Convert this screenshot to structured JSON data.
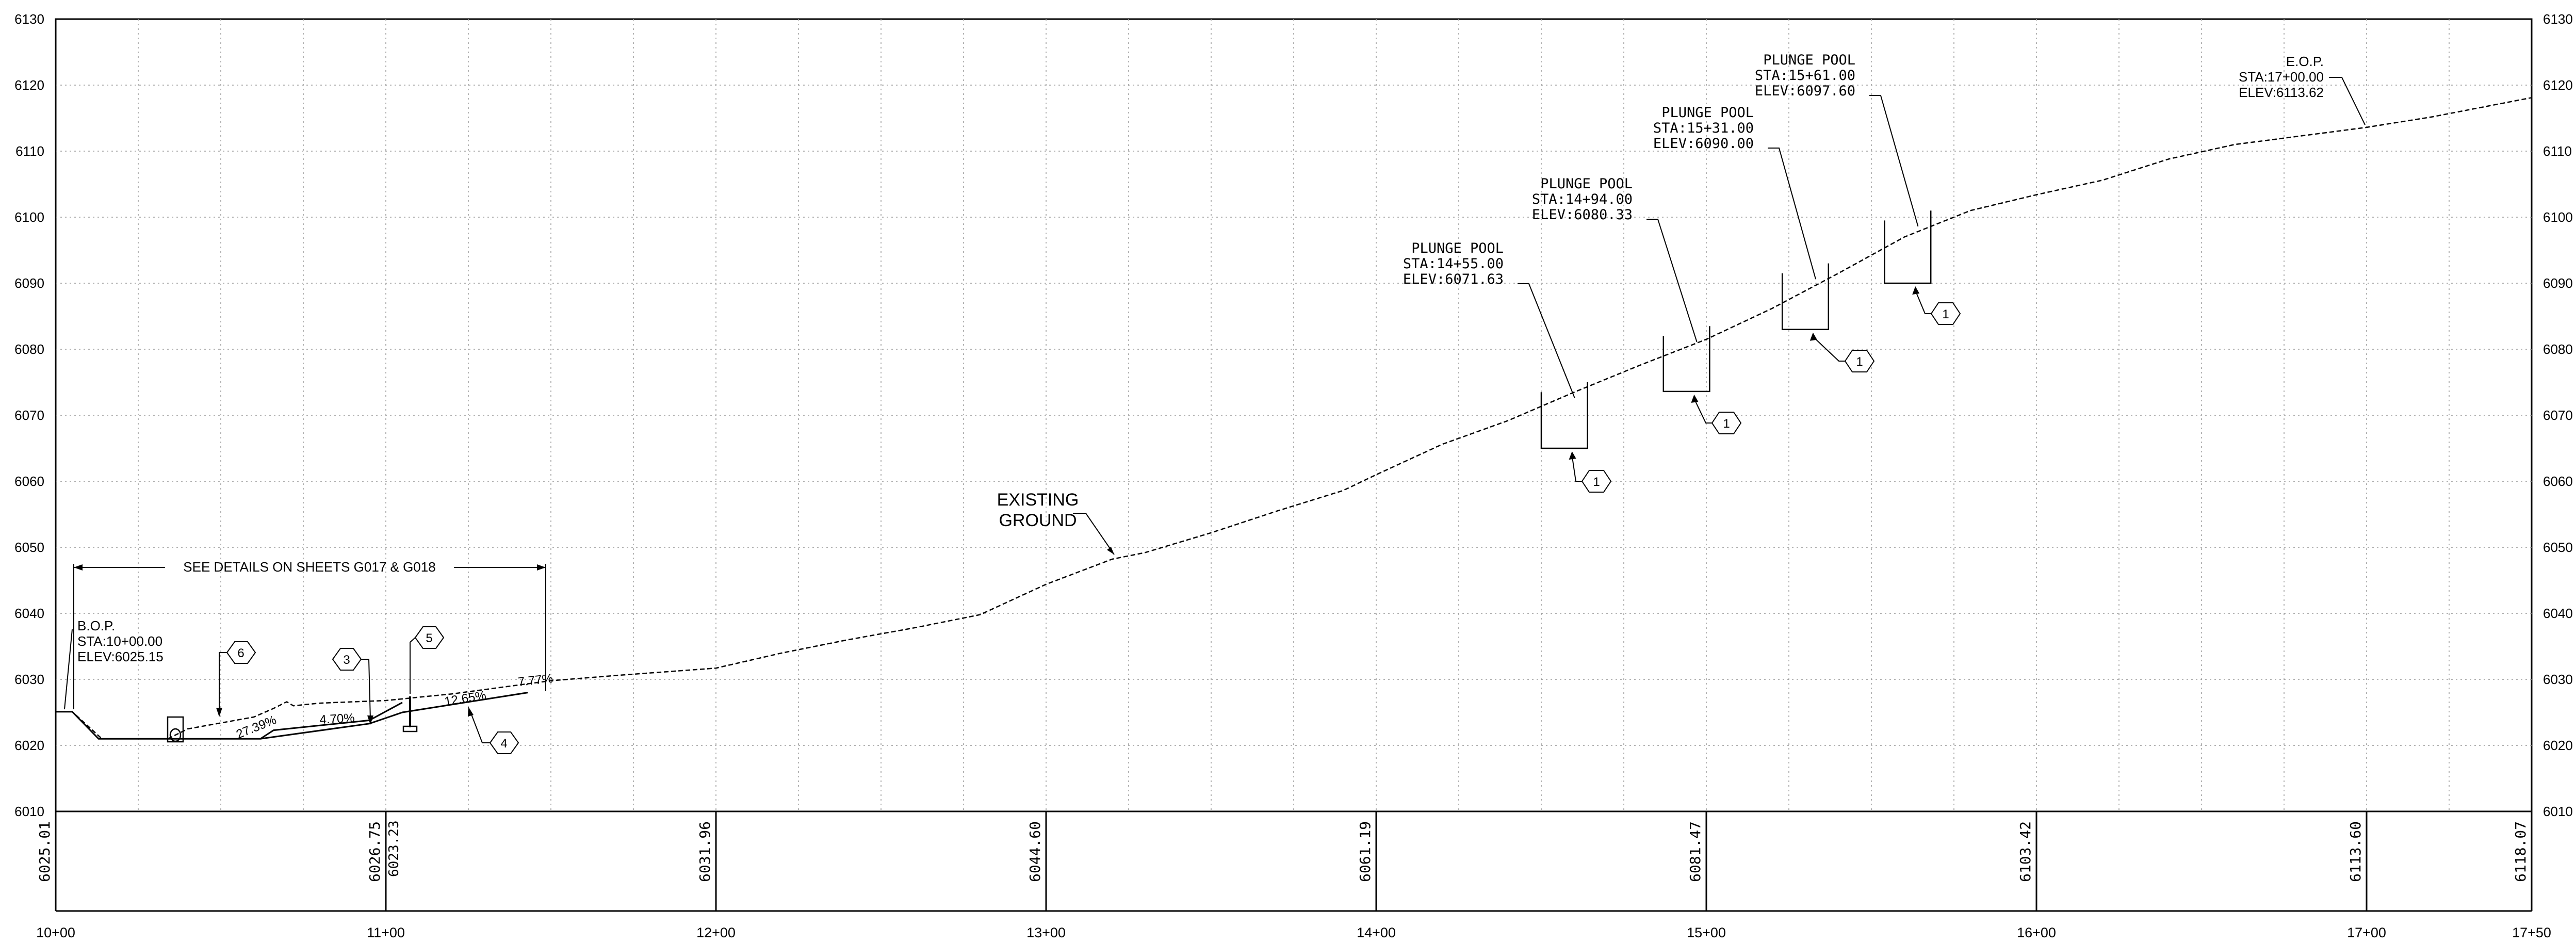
{
  "profile": {
    "y_axis_ticks": [
      "6010",
      "6020",
      "6030",
      "6040",
      "6050",
      "6060",
      "6070",
      "6080",
      "6090",
      "6100",
      "6110",
      "6120",
      "6130"
    ],
    "station_ticks": [
      "10+00",
      "11+00",
      "12+00",
      "13+00",
      "14+00",
      "15+00",
      "16+00",
      "17+00",
      "17+50"
    ],
    "elevation_band": [
      {
        "station": "10+00",
        "elev": "6025.01"
      },
      {
        "station": "11+00",
        "elev": "6026.75",
        "elev2": "6023.23"
      },
      {
        "station": "12+00",
        "elev": "6031.96"
      },
      {
        "station": "13+00",
        "elev": "6044.60"
      },
      {
        "station": "14+00",
        "elev": "6061.19"
      },
      {
        "station": "15+00",
        "elev": "6081.47"
      },
      {
        "station": "16+00",
        "elev": "6103.42"
      },
      {
        "station": "17+00",
        "elev": "6113.60"
      },
      {
        "station": "17+50",
        "elev": "6118.07"
      }
    ],
    "existing_ground": {
      "line1": "EXISTING",
      "line2": "GROUND"
    },
    "details_note": "SEE DETAILS ON SHEETS G017 & G018",
    "bop": {
      "title": "B.O.P.",
      "sta": "STA:10+00.00",
      "elev": "ELEV:6025.15"
    },
    "eop": {
      "title": "E.O.P.",
      "sta": "STA:17+00.00",
      "elev": "ELEV:6113.62"
    },
    "plunge_pools": [
      {
        "title": "PLUNGE POOL",
        "sta": "STA:14+55.00",
        "elev": "ELEV:6071.63",
        "tag": "1"
      },
      {
        "title": "PLUNGE POOL",
        "sta": "STA:14+94.00",
        "elev": "ELEV:6080.33",
        "tag": "1"
      },
      {
        "title": "PLUNGE POOL",
        "sta": "STA:15+31.00",
        "elev": "ELEV:6090.00",
        "tag": "1"
      },
      {
        "title": "PLUNGE POOL",
        "sta": "STA:15+61.00",
        "elev": "ELEV:6097.60",
        "tag": "1"
      }
    ],
    "slopes": [
      "27.39%",
      "4.70%",
      "12.65%",
      "7.77%"
    ],
    "callouts": [
      "6",
      "3",
      "5",
      "4"
    ]
  }
}
